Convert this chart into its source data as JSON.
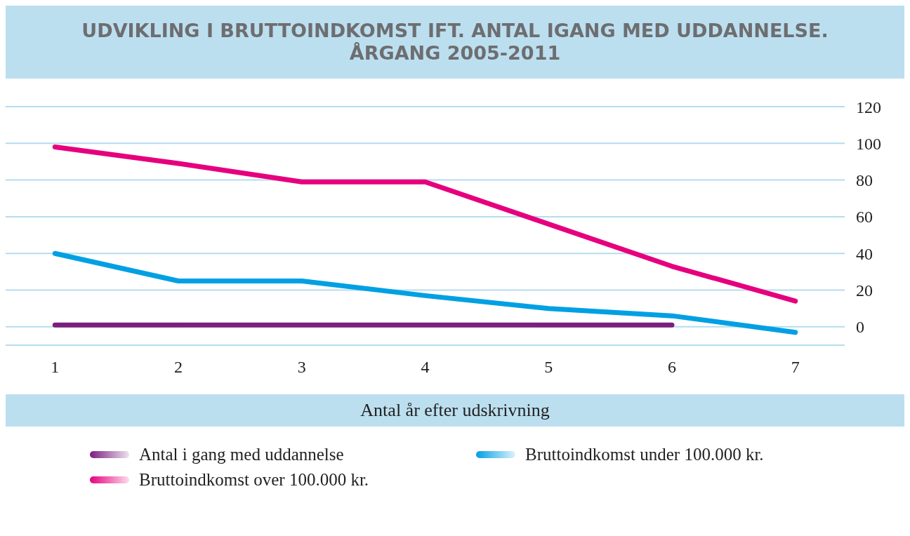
{
  "chart_data": {
    "type": "line",
    "title": "UDVIKLING I BRUTTOINDKOMST IFT. ANTAL IGANG MED UDDANNELSE. ÅRGANG 2005-2011",
    "xlabel": "Antal år efter udskrivning",
    "x": [
      1,
      2,
      3,
      4,
      5,
      6,
      7
    ],
    "series": [
      {
        "name": "Antal i gang med uddannelse",
        "color": "#7b1f7f",
        "values": [
          1,
          1,
          1,
          1,
          1,
          1,
          null
        ]
      },
      {
        "name": "Bruttoindkomst under 100.000 kr.",
        "color": "#00a0e3",
        "values": [
          40,
          25,
          25,
          17,
          10,
          6,
          -3
        ]
      },
      {
        "name": "Bruttoindkomst over 100.000 kr.",
        "color": "#e6007e",
        "values": [
          98,
          89,
          79,
          79,
          56,
          33,
          14
        ]
      }
    ],
    "xlim": [
      0.6,
      7.4
    ],
    "xticks": [
      1,
      2,
      3,
      4,
      5,
      6,
      7
    ],
    "ylim": [
      -10,
      120
    ],
    "yticks": [
      0,
      20,
      40,
      60,
      80,
      100,
      120
    ],
    "grid": "y",
    "legend": "bottom",
    "marker": "none",
    "line_style": "solid"
  }
}
